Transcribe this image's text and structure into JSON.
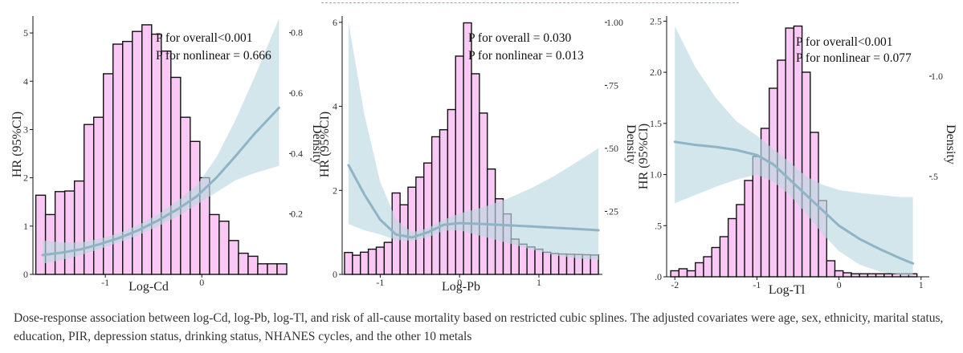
{
  "caption": "Dose-response association between log-Cd, log-Pb, log-Tl, and risk of all-cause mortality based on restricted cubic splines. The adjusted covariates were age, sex, ethnicity, marital status, education, PIR, depression status, drinking status, NHANES cycles, and the other 10 metals",
  "colors": {
    "bar_fill": "#f9c8f4",
    "bar_stroke": "#111111",
    "band_fill": "#bcd8e0",
    "curve": "#8fb4c6"
  },
  "chart_data": [
    {
      "type": "bar",
      "xlabel": "Log-Cd",
      "ylabel": "HR (95%CI)",
      "y2label": "Density",
      "annotations": [
        "P for overall<0.001",
        "P for nonlinear = 0.666"
      ],
      "xlim": [
        -1.75,
        0.88
      ],
      "xticks": [
        -1,
        0
      ],
      "ylim": [
        0,
        5.35
      ],
      "yticks": [
        0,
        1,
        2,
        3,
        4,
        5
      ],
      "y2lim": [
        0,
        0.855
      ],
      "y2ticks": [
        0.2,
        0.4,
        0.6,
        0.8
      ],
      "bins": {
        "x_start": -1.72,
        "width": 0.1,
        "density": [
          0.262,
          0.198,
          0.274,
          0.276,
          0.309,
          0.496,
          0.52,
          0.664,
          0.762,
          0.771,
          0.804,
          0.826,
          0.795,
          0.739,
          0.652,
          0.52,
          0.44,
          0.32,
          0.198,
          0.176,
          0.112,
          0.07,
          0.06,
          0.035,
          0.035,
          0.035
        ]
      },
      "curve": {
        "x": [
          -1.65,
          -1.45,
          -1.25,
          -1.05,
          -0.85,
          -0.65,
          -0.45,
          -0.25,
          -0.05,
          0.15,
          0.35,
          0.55,
          0.8
        ],
        "hr": [
          0.4,
          0.45,
          0.52,
          0.63,
          0.76,
          0.92,
          1.12,
          1.35,
          1.62,
          2.0,
          2.45,
          2.92,
          3.45
        ],
        "lower": [
          0.22,
          0.3,
          0.4,
          0.53,
          0.67,
          0.82,
          1.0,
          1.2,
          1.45,
          1.7,
          1.95,
          2.1,
          2.25
        ],
        "upper": [
          0.7,
          0.66,
          0.66,
          0.74,
          0.86,
          1.03,
          1.25,
          1.52,
          1.85,
          2.42,
          3.2,
          4.1,
          5.3
        ]
      }
    },
    {
      "type": "bar",
      "xlabel": "Log-Pb",
      "ylabel": "HR (95%CI)",
      "y2label": "Density",
      "annotations": [
        "P for overall = 0.030",
        "P for nonlinear = 0.013"
      ],
      "xlim": [
        -1.48,
        1.8
      ],
      "xticks": [
        -1,
        0,
        1
      ],
      "ylim": [
        0,
        6.15
      ],
      "yticks": [
        0,
        2,
        4,
        6
      ],
      "y2lim": [
        0,
        1.025
      ],
      "y2ticks": [
        0.25,
        0.5,
        0.75,
        1.0
      ],
      "bins": {
        "x_start": -1.45,
        "width": 0.1,
        "density": [
          0.087,
          0.076,
          0.088,
          0.1,
          0.108,
          0.127,
          0.323,
          0.276,
          0.346,
          0.386,
          0.442,
          0.546,
          0.574,
          0.654,
          0.866,
          0.998,
          0.796,
          0.64,
          0.418,
          0.3,
          0.24,
          0.14,
          0.12,
          0.109,
          0.1,
          0.088,
          0.083,
          0.081,
          0.08,
          0.079,
          0.078,
          0.077
        ]
      },
      "curve": {
        "x": [
          -1.4,
          -1.2,
          -1.0,
          -0.8,
          -0.6,
          -0.4,
          -0.2,
          0.0,
          0.3,
          0.6,
          0.9,
          1.2,
          1.5,
          1.75
        ],
        "hr": [
          2.6,
          1.9,
          1.3,
          0.95,
          0.88,
          1.0,
          1.18,
          1.22,
          1.2,
          1.17,
          1.14,
          1.11,
          1.08,
          1.05
        ],
        "lower": [
          1.2,
          1.05,
          0.95,
          0.82,
          0.8,
          0.88,
          1.04,
          1.05,
          0.9,
          0.75,
          0.6,
          0.45,
          0.38,
          0.35
        ],
        "upper": [
          6.0,
          3.8,
          2.2,
          1.3,
          1.0,
          1.1,
          1.3,
          1.45,
          1.6,
          1.8,
          2.05,
          2.35,
          2.7,
          3.0
        ]
      }
    },
    {
      "type": "bar",
      "xlabel": "Log-Tl",
      "ylabel": "HR (95%CI)",
      "y2label": "Density",
      "annotations": [
        "P for overall<0.001",
        "P for nonlinear = 0.077"
      ],
      "xlim": [
        -2.1,
        1.1
      ],
      "xticks": [
        -2,
        -1,
        0,
        1
      ],
      "ylim": [
        0,
        2.55
      ],
      "yticks": [
        0.0,
        0.5,
        1.0,
        1.5,
        2.0,
        2.5
      ],
      "y2lim": [
        0,
        1.3
      ],
      "y2ticks": [
        0.5,
        1.0
      ],
      "bins": {
        "x_start": -2.05,
        "width": 0.1,
        "density": [
          0.03,
          0.04,
          0.03,
          0.07,
          0.1,
          0.146,
          0.2,
          0.29,
          0.36,
          0.48,
          0.6,
          0.74,
          0.94,
          1.08,
          1.24,
          1.25,
          1.02,
          0.72,
          0.38,
          0.08,
          0.03,
          0.02,
          0.015,
          0.015,
          0.015,
          0.015,
          0.015,
          0.015,
          0.015,
          0.015
        ]
      },
      "curve": {
        "x": [
          -2.0,
          -1.75,
          -1.5,
          -1.25,
          -1.0,
          -0.8,
          -0.6,
          -0.4,
          -0.2,
          0.0,
          0.25,
          0.5,
          0.75,
          0.9
        ],
        "hr": [
          1.32,
          1.29,
          1.27,
          1.24,
          1.19,
          1.1,
          0.95,
          0.8,
          0.65,
          0.5,
          0.37,
          0.27,
          0.18,
          0.13
        ],
        "lower": [
          0.72,
          0.8,
          0.88,
          0.95,
          1.0,
          0.93,
          0.8,
          0.62,
          0.42,
          0.25,
          0.12,
          0.05,
          0.02,
          0.01
        ],
        "upper": [
          2.45,
          2.05,
          1.75,
          1.52,
          1.38,
          1.25,
          1.12,
          0.98,
          0.9,
          0.85,
          0.82,
          0.8,
          0.78,
          0.78
        ]
      }
    }
  ]
}
